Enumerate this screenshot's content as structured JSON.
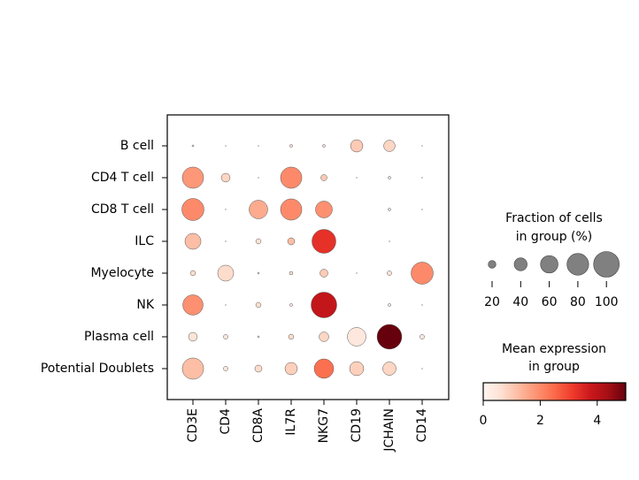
{
  "chart_data": {
    "type": "dotplot",
    "groups": [
      "B cell",
      "CD4 T cell",
      "CD8 T cell",
      "ILC",
      "Myelocyte",
      "NK",
      "Plasma cell",
      "Potential Doublets"
    ],
    "genes": [
      "CD3E",
      "CD4",
      "CD8A",
      "IL7R",
      "NKG7",
      "CD19",
      "JCHAIN",
      "CD14"
    ],
    "fraction": [
      [
        3,
        1,
        1,
        5,
        5,
        38,
        34,
        1
      ],
      [
        78,
        24,
        1,
        78,
        15,
        1,
        5,
        1
      ],
      [
        82,
        1,
        65,
        78,
        57,
        0,
        5,
        1
      ],
      [
        53,
        1,
        12,
        18,
        91,
        0,
        1,
        0
      ],
      [
        12,
        53,
        3,
        7,
        21,
        1,
        10,
        82
      ],
      [
        73,
        1,
        12,
        5,
        100,
        0,
        5,
        1
      ],
      [
        24,
        10,
        3,
        12,
        27,
        65,
        95,
        10
      ],
      [
        78,
        10,
        18,
        38,
        69,
        45,
        42,
        1
      ]
    ],
    "expression": [
      [
        0.5,
        0.5,
        0.3,
        0.5,
        0.5,
        1.0,
        0.8,
        0.2
      ],
      [
        1.8,
        0.8,
        0.3,
        2.0,
        1.0,
        0.1,
        0.3,
        0.3
      ],
      [
        2.0,
        0.3,
        1.5,
        2.0,
        1.9,
        0,
        0.4,
        0.2
      ],
      [
        1.2,
        0.3,
        0.5,
        1.2,
        3.3,
        0,
        0.2,
        0
      ],
      [
        0.7,
        0.7,
        0.3,
        0.5,
        1.0,
        0.2,
        0.5,
        2.0
      ],
      [
        1.9,
        0.1,
        0.6,
        0.4,
        3.9,
        0,
        0.3,
        0.1
      ],
      [
        0.5,
        0.4,
        0.3,
        0.7,
        0.8,
        0.4,
        5.0,
        0.4
      ],
      [
        1.2,
        0.4,
        0.7,
        0.9,
        2.4,
        0.9,
        0.8,
        0.2
      ]
    ],
    "size_legend": {
      "title": [
        "Fraction of cells",
        "in group (%)"
      ],
      "values": [
        20,
        40,
        60,
        80,
        100
      ],
      "color": "#808080"
    },
    "colorbar": {
      "title": [
        "Mean expression",
        "in group"
      ],
      "lim": [
        0,
        5
      ],
      "ticks": [
        0,
        2,
        4
      ],
      "colormap": [
        "#fff5f0",
        "#fee0d2",
        "#fcbba1",
        "#fc9272",
        "#fb6a4a",
        "#ef3b2c",
        "#cb181d",
        "#a50f15",
        "#67000d"
      ]
    }
  }
}
